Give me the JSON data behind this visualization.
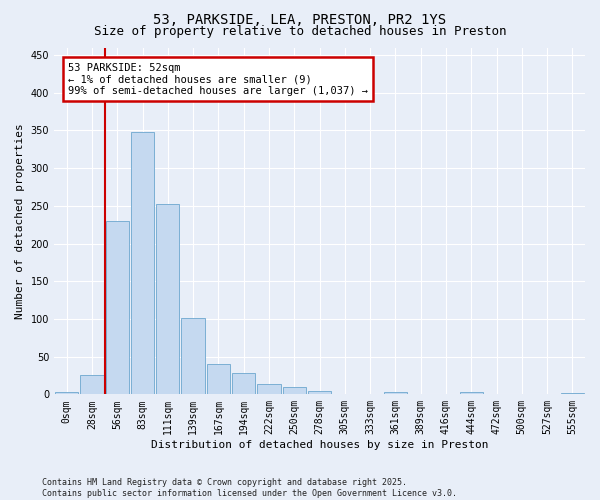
{
  "title": "53, PARKSIDE, LEA, PRESTON, PR2 1YS",
  "subtitle": "Size of property relative to detached houses in Preston",
  "xlabel": "Distribution of detached houses by size in Preston",
  "ylabel": "Number of detached properties",
  "bar_color": "#c5d9f0",
  "bar_edge_color": "#7bafd4",
  "vline_color": "#cc0000",
  "vline_x": 1.5,
  "annotation_text": "53 PARKSIDE: 52sqm\n← 1% of detached houses are smaller (9)\n99% of semi-detached houses are larger (1,037) →",
  "annotation_box_color": "#cc0000",
  "background_color": "#e8eef8",
  "grid_color": "#ffffff",
  "categories": [
    "0sqm",
    "28sqm",
    "56sqm",
    "83sqm",
    "111sqm",
    "139sqm",
    "167sqm",
    "194sqm",
    "222sqm",
    "250sqm",
    "278sqm",
    "305sqm",
    "333sqm",
    "361sqm",
    "389sqm",
    "416sqm",
    "444sqm",
    "472sqm",
    "500sqm",
    "527sqm",
    "555sqm"
  ],
  "values": [
    3,
    25,
    230,
    348,
    253,
    101,
    40,
    28,
    14,
    10,
    4,
    0,
    0,
    3,
    0,
    0,
    3,
    0,
    0,
    0,
    2
  ],
  "ylim": [
    0,
    460
  ],
  "yticks": [
    0,
    50,
    100,
    150,
    200,
    250,
    300,
    350,
    400,
    450
  ],
  "footer": "Contains HM Land Registry data © Crown copyright and database right 2025.\nContains public sector information licensed under the Open Government Licence v3.0.",
  "title_fontsize": 10,
  "subtitle_fontsize": 9,
  "tick_fontsize": 7,
  "ylabel_fontsize": 8,
  "xlabel_fontsize": 8,
  "annotation_fontsize": 7.5,
  "footer_fontsize": 6
}
